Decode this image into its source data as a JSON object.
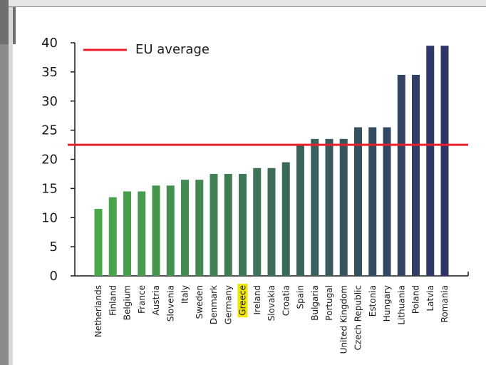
{
  "chart_data": {
    "type": "bar",
    "categories": [
      "Netherlands",
      "Finland",
      "Belgium",
      "France",
      "Austria",
      "Slovenia",
      "Italy",
      "Sweden",
      "Denmark",
      "Germany",
      "Greece",
      "Ireland",
      "Slovakia",
      "Croatia",
      "Spain",
      "Bulgaria",
      "Portugal",
      "United Kingdom",
      "Czech Republic",
      "Estonia",
      "Hungary",
      "Lithuania",
      "Poland",
      "Latvia",
      "Romania"
    ],
    "values": [
      11.5,
      13.5,
      14.5,
      14.5,
      15.5,
      15.5,
      16.5,
      16.5,
      17.5,
      17.5,
      17.5,
      18.5,
      18.5,
      19.5,
      22.5,
      23.5,
      23.5,
      23.5,
      25.5,
      25.5,
      25.5,
      34.5,
      34.5,
      39.5,
      39.5
    ],
    "ylim": [
      0,
      40
    ],
    "yticks": [
      0,
      5,
      10,
      15,
      20,
      25,
      30,
      35,
      40
    ],
    "reference_line": {
      "label": "EU average",
      "value": 22.5,
      "color": "#e8202a"
    },
    "highlighted_category": "Greece",
    "highlight_color": "#f2e600",
    "color_gradient": [
      "#4aa84a",
      "#2e3466"
    ],
    "xlabel": "",
    "ylabel": "",
    "title": "",
    "legend": {
      "position": "top-left",
      "entries": [
        "EU average"
      ]
    },
    "grid": false
  }
}
